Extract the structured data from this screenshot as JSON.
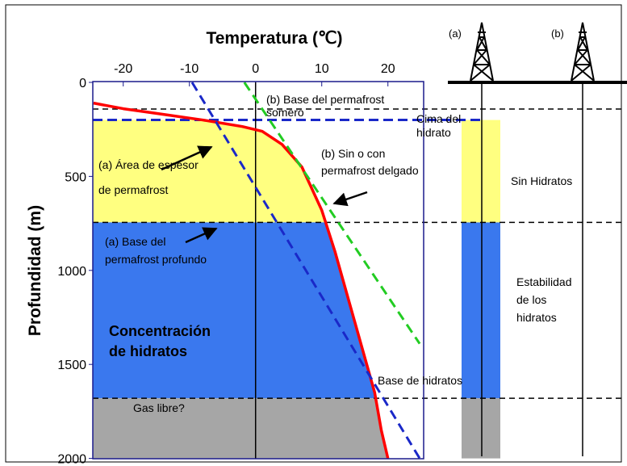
{
  "chart_data": {
    "type": "line",
    "title": "Temperatura (℃)",
    "y_label": "Profundidad (m)",
    "xlim": [
      -24.6,
      25.4
    ],
    "ylim": [
      0,
      2000
    ],
    "xticks": [
      -20,
      -10,
      0,
      10,
      20
    ],
    "yticks": [
      0,
      500,
      1000,
      1500,
      2000
    ],
    "series": [
      {
        "color": "#ff0000",
        "style": "solid",
        "x": [
          -24.5,
          -20,
          -15,
          -8,
          -2,
          1,
          4,
          7,
          10,
          12,
          14,
          16,
          18,
          19,
          20
        ],
        "values": [
          110,
          140,
          165,
          200,
          235,
          260,
          330,
          450,
          680,
          900,
          1150,
          1400,
          1650,
          1850,
          2000
        ]
      },
      {
        "color": "#1a28c8",
        "style": "dashed",
        "x": [
          -9.6,
          24.8
        ],
        "values": [
          0,
          2000
        ]
      },
      {
        "color": "#22cc22",
        "style": "dashed",
        "x": [
          -1.7,
          24.8
        ],
        "values": [
          0,
          1390
        ]
      }
    ],
    "zones": [
      {
        "color": "#ffff80",
        "range": [
          200,
          745
        ]
      },
      {
        "color": "#3a78ee",
        "range": [
          745,
          1680
        ]
      },
      {
        "color": "#a6a6a6",
        "range": [
          1680,
          2000
        ]
      }
    ],
    "reference_lines": [
      {
        "color": "#000000",
        "depth": 142
      },
      {
        "color": "#1a28c8",
        "depth": 200
      },
      {
        "color": "#000000",
        "depth": 745
      },
      {
        "color": "#000000",
        "depth": 1680
      }
    ],
    "annotations": {
      "well_a": "(a)",
      "well_b": "(b)",
      "hydrate_top": [
        "Cima del",
        "hidrato"
      ],
      "shallow_base": [
        "(b) Base del permafrost",
        "somero"
      ],
      "thick_area": [
        "(a) Área de espesor",
        "de permafrost"
      ],
      "thin": [
        "(b) Sin o con",
        "permafrost delgado"
      ],
      "deep_base": [
        "(a) Base del",
        "permafrost profundo"
      ],
      "concentration": [
        "Concentración",
        "de hidratos"
      ],
      "hydrate_base": "Base de hidratos",
      "free_gas": "Gas libre?",
      "no_hydrates": "Sin Hidratos",
      "stability": [
        "Estabilidad",
        "de los",
        "hidratos"
      ]
    }
  }
}
